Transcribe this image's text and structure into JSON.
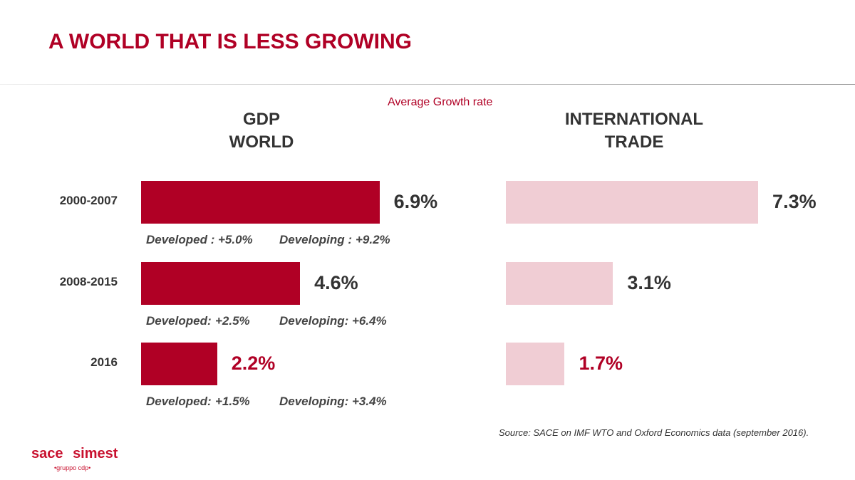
{
  "title": "A WORLD THAT IS LESS GROWING",
  "subtitle": "Average Growth rate",
  "source": "Source: SACE on IMF WTO and Oxford Economics data (september 2016).",
  "logo": {
    "left": "sace",
    "right": "simest",
    "tagline": "•gruppo cdp•"
  },
  "chart_data": [
    {
      "type": "bar",
      "orientation": "horizontal",
      "title": "GDP WORLD",
      "categories": [
        "2000-2007",
        "2008-2015",
        "2016"
      ],
      "values": [
        6.9,
        4.6,
        2.2
      ],
      "value_labels": [
        "6.9%",
        "4.6%",
        "2.2%"
      ],
      "color": "#b00025",
      "annotations": [
        {
          "developed_label": "Developed :",
          "developed": "+5.0%",
          "developing_label": "Developing :",
          "developing": "+9.2%"
        },
        {
          "developed_label": "Developed:",
          "developed": "+2.5%",
          "developing_label": "Developing:",
          "developing": "+6.4%"
        },
        {
          "developed_label": "Developed:",
          "developed": "+1.5%",
          "developing_label": "Developing:",
          "developing": "+3.4%"
        }
      ]
    },
    {
      "type": "bar",
      "orientation": "horizontal",
      "title": "INTERNATIONAL TRADE",
      "values": [
        7.3,
        3.1,
        1.7
      ],
      "value_labels": [
        "7.3%",
        "3.1%",
        "1.7%"
      ],
      "color": "#f0cdd4"
    }
  ]
}
